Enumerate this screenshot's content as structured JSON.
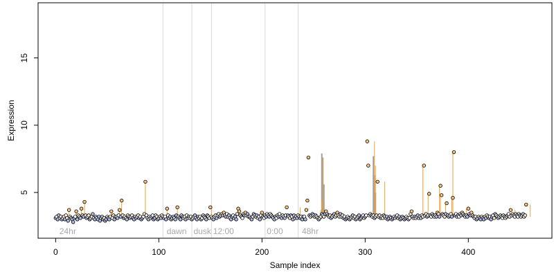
{
  "chart_data": {
    "type": "scatter",
    "title": "",
    "xlabel": "Sample index",
    "ylabel": "Expression",
    "xlim": [
      -17,
      481
    ],
    "ylim": [
      1.6,
      19.1
    ],
    "xticks": [
      0,
      100,
      200,
      300,
      400
    ],
    "yticks": [
      5,
      10,
      15
    ],
    "grid": false,
    "legend": "none",
    "colors": {
      "point_edge": "#000000",
      "point_fill_low": "#aeb9e3",
      "point_fill_high": "#f6c27f",
      "stem": "#f0a030",
      "bar": "#a0a0a0",
      "marker_line": "#d9d9d9",
      "annotation_text": "#a8a8a8"
    },
    "phase_markers": [
      {
        "x": 104,
        "label": ""
      },
      {
        "x": 132,
        "label": ""
      },
      {
        "x": 151,
        "label": ""
      },
      {
        "x": 203,
        "label": ""
      },
      {
        "x": 235,
        "label": ""
      }
    ],
    "annotations": [
      {
        "x": 3,
        "label": "24hr"
      },
      {
        "x": 107,
        "label": "dawn"
      },
      {
        "x": 133,
        "label": "dusk"
      },
      {
        "x": 152,
        "label": "12:00"
      },
      {
        "x": 204,
        "label": "0:00"
      },
      {
        "x": 238,
        "label": "48hr"
      }
    ],
    "baseline": 3.2,
    "gray_bars": [
      {
        "x": 258,
        "value": 7.9
      },
      {
        "x": 259,
        "value": 7.6
      },
      {
        "x": 260,
        "value": 5.6
      },
      {
        "x": 308,
        "value": 7.7
      },
      {
        "x": 309,
        "value": 6.3
      },
      {
        "x": 310,
        "value": 5.0
      }
    ],
    "highlights": [
      {
        "x": 13,
        "value": 3.7
      },
      {
        "x": 20,
        "value": 3.6
      },
      {
        "x": 25,
        "value": 3.8
      },
      {
        "x": 28,
        "value": 4.3
      },
      {
        "x": 54,
        "value": 3.6
      },
      {
        "x": 62,
        "value": 3.7
      },
      {
        "x": 64,
        "value": 4.4
      },
      {
        "x": 87,
        "value": 5.8
      },
      {
        "x": 108,
        "value": 3.8
      },
      {
        "x": 118,
        "value": 3.9
      },
      {
        "x": 151,
        "value": 3.9
      },
      {
        "x": 237,
        "value": 3.9
      },
      {
        "x": 257,
        "value": 3.7
      },
      {
        "x": 258,
        "value": 4.4
      },
      {
        "x": 259,
        "value": 7.6
      },
      {
        "x": 309,
        "value": 8.8
      },
      {
        "x": 310,
        "value": 7.0
      },
      {
        "x": 319,
        "value": 5.8
      },
      {
        "x": 356,
        "value": 7.0
      },
      {
        "x": 361,
        "value": 4.9
      },
      {
        "x": 372,
        "value": 5.5
      },
      {
        "x": 373,
        "value": 4.8
      },
      {
        "x": 378,
        "value": 4.2
      },
      {
        "x": 384,
        "value": 4.6
      },
      {
        "x": 385,
        "value": 8.0
      },
      {
        "x": 398,
        "value": 3.8
      },
      {
        "x": 445,
        "value": 3.7
      },
      {
        "x": 460,
        "value": 4.1
      }
    ],
    "series": [
      {
        "values": [
          3.1,
          3.2,
          3.0,
          3.3,
          3.1,
          3.2,
          3.0,
          3.1,
          3.2,
          3.0,
          3.3,
          3.1,
          2.9,
          3.7,
          3.2,
          3.1,
          3.0,
          2.8,
          3.1,
          3.2,
          3.6,
          3.0,
          3.3,
          3.2,
          3.1,
          3.8,
          3.3,
          3.2,
          4.3,
          3.3,
          3.1,
          3.2,
          3.3,
          3.0,
          3.1,
          3.2,
          3.4,
          3.1,
          3.0,
          3.2,
          3.1,
          3.0,
          3.2,
          2.9,
          3.1,
          3.2,
          3.0,
          3.1,
          2.9,
          3.0,
          3.2,
          3.1,
          3.0,
          3.2,
          3.6,
          3.1,
          3.3,
          3.0,
          3.2,
          3.2,
          3.1,
          3.3,
          3.7,
          3.2,
          4.4,
          3.3,
          3.1,
          3.2,
          3.1,
          3.0,
          3.3,
          3.2,
          3.1,
          3.2,
          3.3,
          3.1,
          3.0,
          3.2,
          3.1,
          3.2,
          3.3,
          3.1,
          3.2,
          3.0,
          3.1,
          3.2,
          3.4,
          5.8,
          3.3,
          3.1,
          3.0,
          3.2,
          3.1,
          3.2,
          3.3,
          3.0,
          3.1,
          3.3,
          3.2,
          3.0,
          3.1,
          3.2,
          3.1,
          3.3,
          3.2,
          3.1,
          3.2,
          3.0,
          3.8,
          3.3,
          3.1,
          3.2,
          3.0,
          3.1,
          3.2,
          3.1,
          3.0,
          3.3,
          3.9,
          3.2,
          3.1,
          3.0,
          3.3,
          3.2,
          3.1,
          3.2,
          3.0,
          3.3,
          3.1,
          3.2,
          3.1,
          3.2,
          3.0,
          3.1,
          3.2,
          3.3,
          3.1,
          3.0,
          3.2,
          3.1,
          3.2,
          3.0,
          3.1,
          3.3,
          3.2,
          3.1,
          3.0,
          3.3,
          3.2,
          3.1,
          3.9,
          3.2,
          3.1,
          3.0,
          3.2,
          3.3,
          3.1,
          3.3,
          3.4,
          3.2,
          3.3,
          3.4,
          3.3,
          3.5,
          3.3,
          3.2,
          3.4,
          3.2,
          3.3,
          3.1,
          3.0,
          3.2,
          3.3,
          3.1,
          3.2,
          3.0,
          3.4,
          3.8,
          3.6,
          3.3,
          3.2,
          3.1,
          3.4,
          3.3,
          3.5,
          3.3,
          3.4,
          3.2,
          3.2,
          3.1,
          3.0,
          3.2,
          3.4,
          3.3,
          3.2,
          3.3,
          3.1,
          3.2,
          3.0,
          3.3,
          3.5,
          3.2,
          3.1,
          3.3,
          3.2,
          3.4,
          3.3,
          3.2,
          3.4,
          3.3,
          3.2,
          3.1,
          3.0,
          3.2,
          3.1,
          3.3,
          3.2,
          3.4,
          3.2,
          3.1,
          3.3,
          3.2,
          3.1,
          3.3,
          3.9,
          3.3,
          3.2,
          3.1,
          3.3,
          3.2,
          3.0,
          3.3,
          3.1,
          3.2,
          3.1,
          3.3,
          3.2,
          3.1,
          3.2,
          3.0,
          3.2,
          3.2,
          3.0,
          3.7,
          4.4,
          7.6,
          3.3,
          3.2,
          3.3,
          3.4,
          3.3,
          3.2,
          3.3,
          3.2,
          3.1,
          3.0,
          3.1,
          3.2,
          3.4,
          3.3,
          3.2,
          3.4,
          3.6,
          3.4,
          3.3,
          3.2,
          3.3,
          3.1,
          3.2,
          3.3,
          3.4,
          3.2,
          3.3,
          3.5,
          3.3,
          3.2,
          3.4,
          3.2,
          3.3,
          3.1,
          3.2,
          3.0,
          3.1,
          3.2,
          3.1,
          3.0,
          3.1,
          3.2,
          3.3,
          3.1,
          3.2,
          3.0,
          3.1,
          3.2,
          3.3,
          3.0,
          3.1,
          3.2,
          3.3,
          3.1,
          3.2,
          3.3,
          8.8,
          7.0,
          3.3,
          3.4,
          3.3,
          3.2,
          3.3,
          3.1,
          3.2,
          3.3,
          5.8,
          3.2,
          3.3,
          3.1,
          3.2,
          3.1,
          3.3,
          3.2,
          3.1,
          3.2,
          3.0,
          3.1,
          3.2,
          3.1,
          3.0,
          3.1,
          3.2,
          3.1,
          3.2,
          3.3,
          3.1,
          3.2,
          3.0,
          3.1,
          3.2,
          3.1,
          3.0,
          3.1,
          3.2,
          3.1,
          3.0,
          3.1,
          3.4,
          3.6,
          3.2,
          3.1,
          3.2,
          3.1,
          3.2,
          3.3,
          3.1,
          3.2,
          3.1,
          3.3,
          3.2,
          7.0,
          3.3,
          3.4,
          3.2,
          3.3,
          4.9,
          3.3,
          3.2,
          3.4,
          3.3,
          3.2,
          3.3,
          3.2,
          3.5,
          3.4,
          3.2,
          5.5,
          4.8,
          3.4,
          3.3,
          3.2,
          3.4,
          4.2,
          3.3,
          3.2,
          3.3,
          3.4,
          3.2,
          4.6,
          8.0,
          3.3,
          3.4,
          3.2,
          3.3,
          3.2,
          3.4,
          3.3,
          3.5,
          3.4,
          3.3,
          3.2,
          3.3,
          3.2,
          3.8,
          3.4,
          3.3,
          3.5,
          3.3,
          3.2,
          3.1,
          3.2,
          3.0,
          3.1,
          3.2,
          3.1,
          3.0,
          3.2,
          3.1,
          3.0,
          3.2,
          3.1,
          3.3,
          3.2,
          3.1,
          3.2,
          3.0,
          3.2,
          3.3,
          3.1,
          3.4,
          3.3,
          3.2,
          3.1,
          3.2,
          3.3,
          3.2,
          3.1,
          3.3,
          3.2,
          3.1,
          3.2,
          3.3,
          3.4,
          3.2,
          3.7,
          3.3,
          3.4,
          3.3,
          3.2,
          3.4,
          3.3,
          3.2,
          3.4,
          3.3,
          3.2,
          3.3,
          3.4,
          3.2,
          3.3,
          4.1
        ]
      }
    ]
  }
}
